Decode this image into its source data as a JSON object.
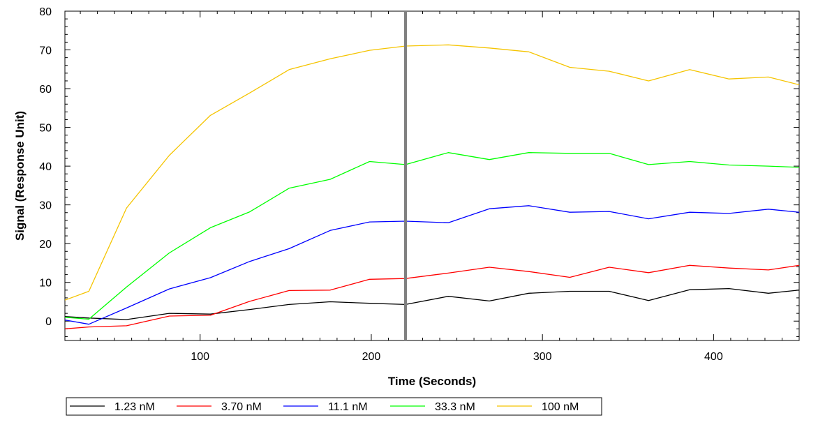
{
  "chart_data": {
    "type": "line",
    "title": "",
    "xlabel": "Time (Seconds)",
    "ylabel": "Signal (Response Unit)",
    "xlim": [
      21,
      450
    ],
    "ylim": [
      -5,
      80
    ],
    "x_ticks": [
      100,
      200,
      300,
      400
    ],
    "y_ticks": [
      0,
      10,
      20,
      30,
      40,
      50,
      60,
      70,
      80
    ],
    "grid": false,
    "legend_position": "bottom-left",
    "marker_line": {
      "x": 220,
      "color": "#808080"
    },
    "x": [
      21,
      35,
      57,
      82,
      106,
      129,
      152,
      176,
      199,
      220,
      245,
      269,
      292,
      316,
      339,
      362,
      386,
      409,
      432,
      450
    ],
    "series": [
      {
        "name": "1.23 nM",
        "color": "#000000",
        "values": [
          1.2,
          0.8,
          0.4,
          2.0,
          1.8,
          3.0,
          4.3,
          5.0,
          4.6,
          4.3,
          6.4,
          5.2,
          7.2,
          7.7,
          7.7,
          5.3,
          8.1,
          8.4,
          7.2,
          8.0
        ]
      },
      {
        "name": "3.70 nM",
        "color": "#ff0000",
        "values": [
          -2.0,
          -1.5,
          -1.2,
          1.3,
          1.5,
          5.1,
          7.9,
          8.0,
          10.8,
          11.0,
          12.4,
          13.9,
          12.8,
          11.3,
          13.9,
          12.5,
          14.4,
          13.7,
          13.2,
          14.4
        ]
      },
      {
        "name": "11.1 nM",
        "color": "#0000ff",
        "values": [
          0.3,
          -0.8,
          3.4,
          8.3,
          11.2,
          15.4,
          18.7,
          23.4,
          25.6,
          25.8,
          25.4,
          29.0,
          29.8,
          28.1,
          28.3,
          26.4,
          28.1,
          27.8,
          28.9,
          28.1
        ]
      },
      {
        "name": "33.3 nM",
        "color": "#00ff00",
        "values": [
          1.0,
          0.5,
          8.8,
          17.6,
          24.1,
          28.2,
          34.3,
          36.6,
          41.2,
          40.4,
          43.5,
          41.7,
          43.5,
          43.3,
          43.3,
          40.4,
          41.2,
          40.3,
          40.0,
          39.7
        ]
      },
      {
        "name": "100 nM",
        "color": "#f5c400",
        "values": [
          5.4,
          7.7,
          29.2,
          42.8,
          53.1,
          58.9,
          64.9,
          67.7,
          69.9,
          71.0,
          71.3,
          70.5,
          69.5,
          65.5,
          64.5,
          62.0,
          64.9,
          62.5,
          63.0,
          61.0
        ]
      }
    ]
  }
}
